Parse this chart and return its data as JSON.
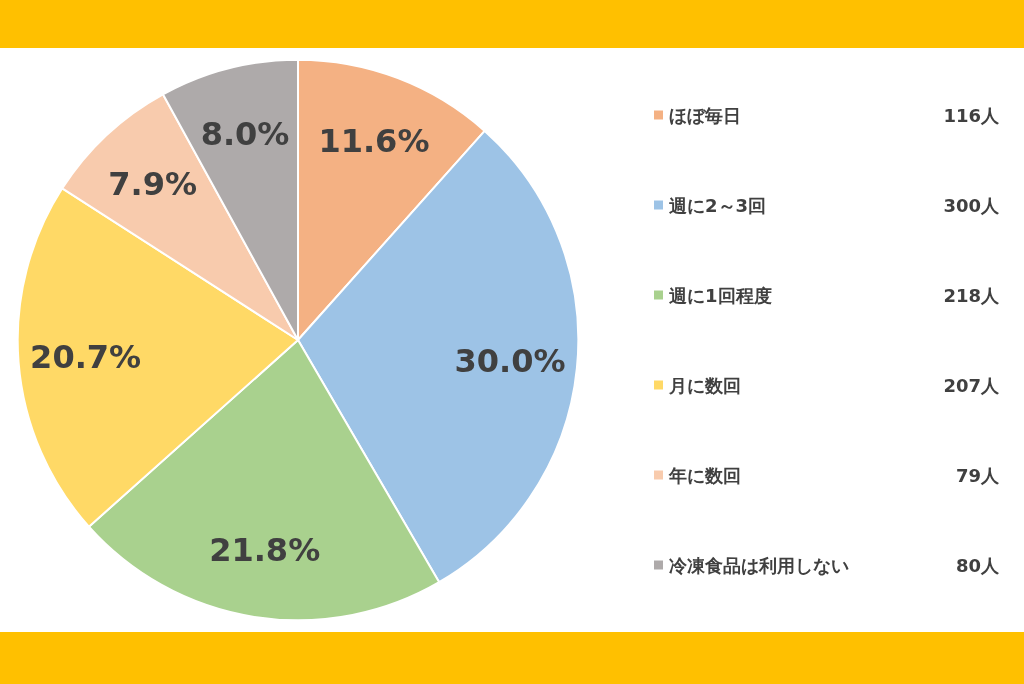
{
  "chart_data": {
    "type": "pie",
    "categories": [
      "ほぼ毎日",
      "週に2～3回",
      "週に1回程度",
      "月に数回",
      "年に数回",
      "冷凍食品は利用しない"
    ],
    "values": [
      11.6,
      30.0,
      21.8,
      20.7,
      7.9,
      8.0
    ],
    "colors": [
      "#f4b183",
      "#9dc3e6",
      "#a9d18e",
      "#ffd966",
      "#f8cbad",
      "#aeaaaa"
    ],
    "value_labels": [
      "11.6%",
      "30.0%",
      "21.8%",
      "20.7%",
      "7.9%",
      "8.0%"
    ],
    "annotations": [
      "116人",
      "300人",
      "218人",
      "207人",
      "79人",
      "80人"
    ],
    "legend": "right"
  }
}
